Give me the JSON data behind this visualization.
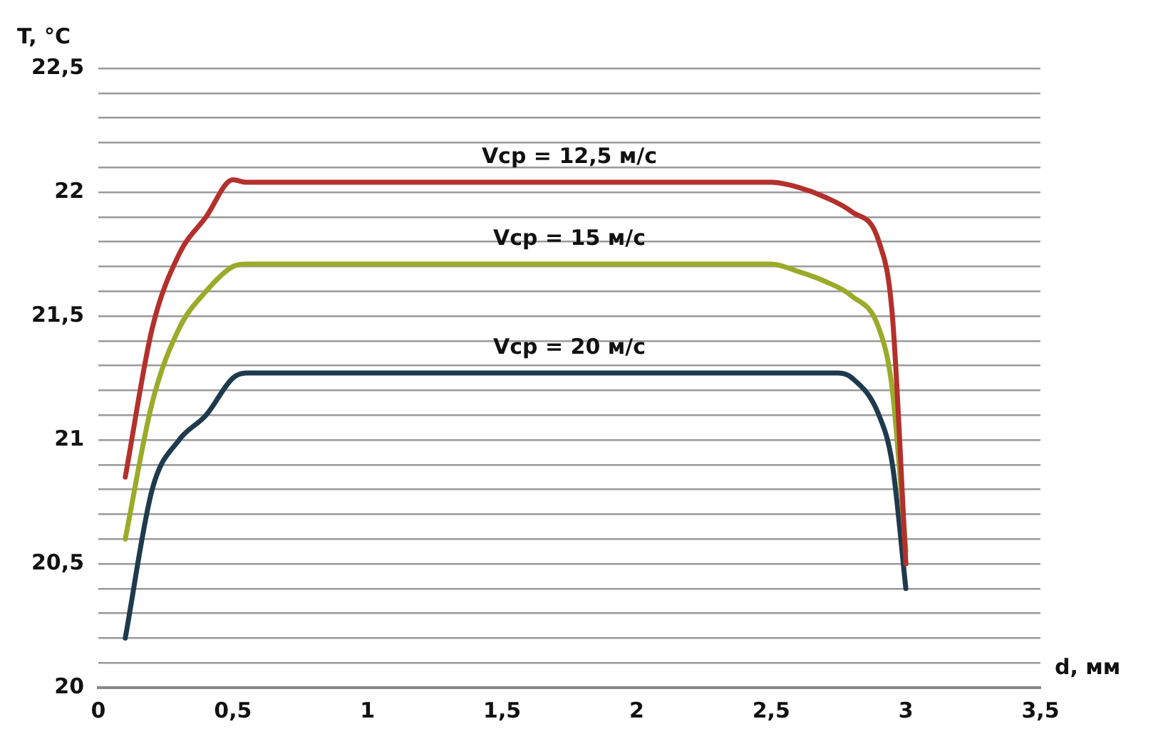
{
  "chart_data": {
    "type": "line",
    "xlabel": "d, мм",
    "ylabel": "T, °C",
    "xlim": [
      0,
      3.5
    ],
    "ylim": [
      20,
      22.5
    ],
    "xticks": [
      0,
      {
        "value": 0.5,
        "label": "0,5"
      },
      1,
      {
        "value": 1.5,
        "label": "1,5"
      },
      2,
      {
        "value": 2.5,
        "label": "2,5"
      },
      3,
      {
        "value": 3.5,
        "label": "3,5"
      }
    ],
    "yticks": [
      20,
      {
        "value": 20.1,
        "label": null
      },
      {
        "value": 20.2,
        "label": null
      },
      {
        "value": 20.3,
        "label": null
      },
      {
        "value": 20.4,
        "label": null
      },
      {
        "value": 20.5,
        "label": "20,5"
      },
      {
        "value": 20.6,
        "label": null
      },
      {
        "value": 20.7,
        "label": null
      },
      {
        "value": 20.8,
        "label": null
      },
      {
        "value": 20.9,
        "label": null
      },
      21,
      {
        "value": 21.1,
        "label": null
      },
      {
        "value": 21.2,
        "label": null
      },
      {
        "value": 21.3,
        "label": null
      },
      {
        "value": 21.4,
        "label": null
      },
      {
        "value": 21.5,
        "label": "21,5"
      },
      {
        "value": 21.6,
        "label": null
      },
      {
        "value": 21.7,
        "label": null
      },
      {
        "value": 21.8,
        "label": null
      },
      {
        "value": 21.9,
        "label": null
      },
      22,
      {
        "value": 22.1,
        "label": null
      },
      {
        "value": 22.2,
        "label": null
      },
      {
        "value": 22.3,
        "label": null
      },
      {
        "value": 22.4,
        "label": null
      },
      {
        "value": 22.5,
        "label": "22,5"
      }
    ],
    "grid": "y",
    "legend": false,
    "marker": "none",
    "line_style": "solid",
    "series": [
      {
        "name": "Vср = 12,5 м/с",
        "color": "#b3302c",
        "x": [
          0.1,
          0.2,
          0.3,
          0.4,
          0.5,
          0.55,
          2.5,
          2.6,
          2.7,
          2.8,
          2.9,
          2.95,
          3.0
        ],
        "values": [
          20.85,
          21.45,
          21.75,
          21.9,
          22.05,
          22.04,
          22.04,
          22.02,
          21.98,
          21.92,
          21.8,
          21.5,
          20.5
        ]
      },
      {
        "name": "Vср = 15 м/с",
        "color": "#9aab2a",
        "x": [
          0.1,
          0.2,
          0.3,
          0.4,
          0.5,
          0.55,
          2.5,
          2.6,
          2.7,
          2.8,
          2.9,
          2.95,
          3.0
        ],
        "values": [
          20.6,
          21.15,
          21.45,
          21.6,
          21.7,
          21.71,
          21.71,
          21.68,
          21.64,
          21.58,
          21.45,
          21.2,
          20.55
        ]
      },
      {
        "name": "Vср = 20 м/с",
        "color": "#1f3a4d",
        "x": [
          0.1,
          0.2,
          0.3,
          0.4,
          0.5,
          0.55,
          2.75,
          2.8,
          2.9,
          2.95,
          3.0
        ],
        "values": [
          20.2,
          20.8,
          21.0,
          21.1,
          21.25,
          21.27,
          21.27,
          21.25,
          21.1,
          20.9,
          20.4
        ]
      }
    ]
  }
}
